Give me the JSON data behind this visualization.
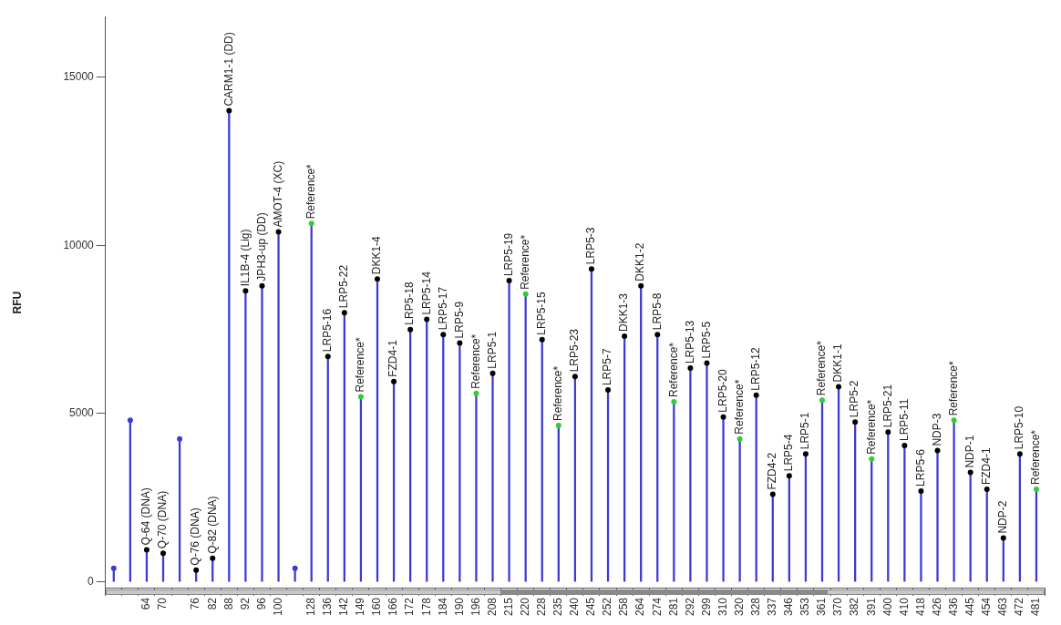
{
  "chart_data": {
    "type": "lollipop",
    "ylabel": "RFU",
    "color": "#3a3ad6",
    "categories": [
      null,
      null,
      "64",
      "70",
      null,
      "76",
      "82",
      "88",
      "92",
      "96",
      "100",
      null,
      "128",
      "136",
      "142",
      "149",
      "160",
      "166",
      "172",
      "178",
      "184",
      "190",
      "196",
      "208",
      "215",
      "220",
      "228",
      "235",
      "240",
      "245",
      "252",
      "258",
      "264",
      "274",
      "281",
      "292",
      "299",
      "310",
      "320",
      "328",
      "337",
      "346",
      "353",
      "361",
      "370",
      "382",
      "391",
      "400",
      "410",
      "418",
      "426",
      "436",
      "445",
      "454",
      "463",
      "472",
      "481"
    ],
    "values": [
      400,
      4800,
      950,
      850,
      4250,
      350,
      700,
      14000,
      8650,
      8800,
      10400,
      400,
      10650,
      6700,
      8000,
      5500,
      9000,
      5950,
      7500,
      7800,
      7350,
      7100,
      5600,
      6200,
      8950,
      8550,
      7200,
      4650,
      6100,
      9300,
      5700,
      7300,
      8800,
      7350,
      5350,
      6350,
      6500,
      4900,
      4250,
      5550,
      2600,
      3150,
      3800,
      5400,
      5800,
      4750,
      3650,
      4450,
      4050,
      2700,
      3900,
      4800,
      3250,
      2750,
      1300,
      3800,
      2750
    ],
    "colors": [
      "#3a3ad6",
      "#3a3ad6",
      "#000000",
      "#000000",
      "#3a3ad6",
      "#000000",
      "#000000",
      "#000000",
      "#000000",
      "#000000",
      "#000000",
      "#3a3ad6",
      "#33cc33",
      "#000000",
      "#000000",
      "#33cc33",
      "#000000",
      "#000000",
      "#000000",
      "#000000",
      "#000000",
      "#000000",
      "#33cc33",
      "#000000",
      "#000000",
      "#33cc33",
      "#000000",
      "#33cc33",
      "#000000",
      "#000000",
      "#000000",
      "#000000",
      "#000000",
      "#000000",
      "#33cc33",
      "#000000",
      "#000000",
      "#000000",
      "#33cc33",
      "#000000",
      "#000000",
      "#000000",
      "#000000",
      "#33cc33",
      "#000000",
      "#000000",
      "#33cc33",
      "#000000",
      "#000000",
      "#000000",
      "#000000",
      "#33cc33",
      "#000000",
      "#000000",
      "#000000",
      "#000000",
      "#33cc33"
    ],
    "marker": "circle",
    "grid": false,
    "legend": false,
    "ylim": [
      -200,
      16800
    ],
    "yticks": [
      0,
      5000,
      10000,
      15000
    ],
    "annotations": [
      {
        "text": "Q-64 (DNA)",
        "x": "64",
        "y": 950
      },
      {
        "text": "Q-70 (DNA)",
        "x": "70",
        "y": 850
      },
      {
        "text": "Q-76 (DNA)",
        "x": "76",
        "y": 350
      },
      {
        "text": "Q-82 (DNA)",
        "x": "82",
        "y": 700
      },
      {
        "text": "CARM1-1 (DD)",
        "x": "88",
        "y": 14000
      },
      {
        "text": "IL1B-4 (Lig)",
        "x": "92",
        "y": 8650
      },
      {
        "text": "JPH3-up (DD)",
        "x": "96",
        "y": 8800
      },
      {
        "text": "AMOT-4 (XC)",
        "x": "100",
        "y": 10400
      },
      {
        "text": "Reference*",
        "x": "128",
        "y": 10650
      },
      {
        "text": "LRP5-16",
        "x": "136",
        "y": 6700
      },
      {
        "text": "LRP5-22",
        "x": "142",
        "y": 8000
      },
      {
        "text": "Reference*",
        "x": "149",
        "y": 5500
      },
      {
        "text": "DKK1-4",
        "x": "160",
        "y": 9000
      },
      {
        "text": "FZD4-1",
        "x": "166",
        "y": 5950
      },
      {
        "text": "LRP5-18",
        "x": "172",
        "y": 7500
      },
      {
        "text": "LRP5-14",
        "x": "178",
        "y": 7800
      },
      {
        "text": "LRP5-17",
        "x": "184",
        "y": 7350
      },
      {
        "text": "LRP5-9",
        "x": "190",
        "y": 7100
      },
      {
        "text": "Reference*",
        "x": "196",
        "y": 5600
      },
      {
        "text": "LRP5-1",
        "x": "208",
        "y": 6200
      },
      {
        "text": "LRP5-19",
        "x": "215",
        "y": 8950
      },
      {
        "text": "Reference*",
        "x": "220",
        "y": 8550
      },
      {
        "text": "LRP5-15",
        "x": "228",
        "y": 7200
      },
      {
        "text": "Reference*",
        "x": "235",
        "y": 4650
      },
      {
        "text": "LRP5-23",
        "x": "240",
        "y": 6100
      },
      {
        "text": "LRP5-3",
        "x": "245",
        "y": 9300
      },
      {
        "text": "LRP5-7",
        "x": "252",
        "y": 5700
      },
      {
        "text": "DKK1-3",
        "x": "258",
        "y": 7300
      },
      {
        "text": "DKK1-2",
        "x": "264",
        "y": 8800
      },
      {
        "text": "LRP5-8",
        "x": "274",
        "y": 7350
      },
      {
        "text": "Reference*",
        "x": "281",
        "y": 5350
      },
      {
        "text": "LRP5-13",
        "x": "292",
        "y": 6350
      },
      {
        "text": "LRP5-5",
        "x": "299",
        "y": 6500
      },
      {
        "text": "LRP5-20",
        "x": "310",
        "y": 4900
      },
      {
        "text": "Reference*",
        "x": "320",
        "y": 4250
      },
      {
        "text": "LRP5-12",
        "x": "328",
        "y": 5550
      },
      {
        "text": "FZD4-2",
        "x": "337",
        "y": 2600
      },
      {
        "text": "LRP5-4",
        "x": "346",
        "y": 3150
      },
      {
        "text": "LRP5-1",
        "x": "353",
        "y": 3800
      },
      {
        "text": "Reference*",
        "x": "361",
        "y": 5400
      },
      {
        "text": "DKK1-1",
        "x": "370",
        "y": 5800
      },
      {
        "text": "LRP5-2",
        "x": "382",
        "y": 4750
      },
      {
        "text": "Reference*",
        "x": "391",
        "y": 3650
      },
      {
        "text": "LRP5-21",
        "x": "400",
        "y": 4450
      },
      {
        "text": "LRP5-11",
        "x": "410",
        "y": 4050
      },
      {
        "text": "LRP5-6",
        "x": "418",
        "y": 2700
      },
      {
        "text": "NDP-3",
        "x": "426",
        "y": 3900
      },
      {
        "text": "Reference*",
        "x": "436",
        "y": 4800
      },
      {
        "text": "NDP-1",
        "x": "445",
        "y": 3250
      },
      {
        "text": "FZD4-1",
        "x": "454",
        "y": 2750
      },
      {
        "text": "NDP-2",
        "x": "463",
        "y": 1300
      },
      {
        "text": "LRP5-10",
        "x": "472",
        "y": 3800
      },
      {
        "text": "Reference*",
        "x": "481",
        "y": 2750
      }
    ]
  }
}
